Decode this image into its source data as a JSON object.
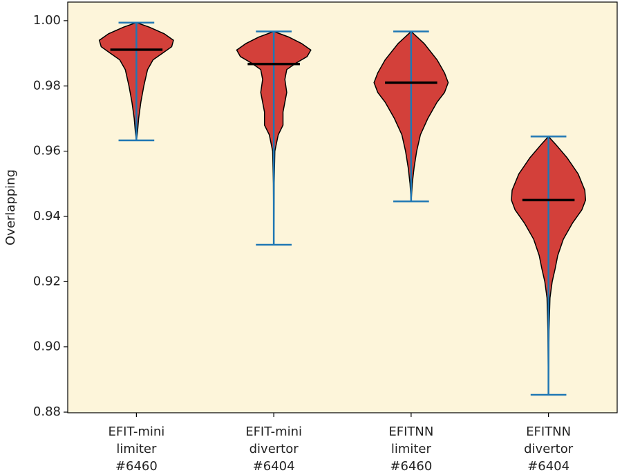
{
  "chart_data": {
    "type": "violin",
    "y_label": "Overlapping",
    "categories": [
      [
        "EFIT-mini",
        "limiter",
        "#6460"
      ],
      [
        "EFIT-mini",
        "divertor",
        "#6404"
      ],
      [
        "EFITNN",
        "limiter",
        "#6460"
      ],
      [
        "EFITNN",
        "divertor",
        "#6404"
      ]
    ],
    "ylim": [
      0.8798,
      1.0057
    ],
    "yticks": [
      {
        "value": 0.88,
        "label": "0.88"
      },
      {
        "value": 0.9,
        "label": "0.90"
      },
      {
        "value": 0.92,
        "label": "0.92"
      },
      {
        "value": 0.94,
        "label": "0.94"
      },
      {
        "value": 0.96,
        "label": "0.96"
      },
      {
        "value": 0.98,
        "label": "0.98"
      },
      {
        "value": 1.0,
        "label": "1.00"
      }
    ],
    "background": "#fdf5da",
    "fill_color": "#d3403a",
    "line_color": "#1f77b4",
    "median_color": "#000000",
    "violins": [
      {
        "min": 0.9633,
        "max": 0.9994,
        "median": 0.9911,
        "kde_y": [
          0.9994,
          0.998,
          0.996,
          0.994,
          0.992,
          0.99,
          0.988,
          0.985,
          0.98,
          0.975,
          0.97,
          0.966,
          0.9633
        ],
        "kde_width": [
          0,
          0.35,
          0.75,
          1.0,
          0.95,
          0.7,
          0.45,
          0.3,
          0.2,
          0.12,
          0.06,
          0.03,
          0
        ]
      },
      {
        "min": 0.9313,
        "max": 0.9967,
        "median": 0.9867,
        "kde_y": [
          0.9967,
          0.995,
          0.993,
          0.991,
          0.989,
          0.987,
          0.985,
          0.982,
          0.978,
          0.975,
          0.972,
          0.968,
          0.965,
          0.96,
          0.95,
          0.9313
        ],
        "kde_width": [
          0,
          0.4,
          0.75,
          1.0,
          0.9,
          0.6,
          0.35,
          0.3,
          0.35,
          0.3,
          0.25,
          0.25,
          0.12,
          0.03,
          0.01,
          0
        ]
      },
      {
        "min": 0.9446,
        "max": 0.9967,
        "median": 0.981,
        "kde_y": [
          0.9967,
          0.993,
          0.988,
          0.984,
          0.981,
          0.978,
          0.975,
          0.97,
          0.965,
          0.96,
          0.955,
          0.95,
          0.9446
        ],
        "kde_width": [
          0,
          0.35,
          0.7,
          0.9,
          1.0,
          0.9,
          0.7,
          0.45,
          0.25,
          0.15,
          0.08,
          0.03,
          0
        ]
      },
      {
        "min": 0.8853,
        "max": 0.9645,
        "median": 0.945,
        "kde_y": [
          0.9645,
          0.962,
          0.958,
          0.953,
          0.948,
          0.945,
          0.942,
          0.938,
          0.933,
          0.928,
          0.924,
          0.92,
          0.915,
          0.905,
          0.8853
        ],
        "kde_width": [
          0,
          0.2,
          0.5,
          0.8,
          0.98,
          1.0,
          0.9,
          0.65,
          0.4,
          0.25,
          0.18,
          0.1,
          0.04,
          0.015,
          0
        ]
      }
    ]
  }
}
